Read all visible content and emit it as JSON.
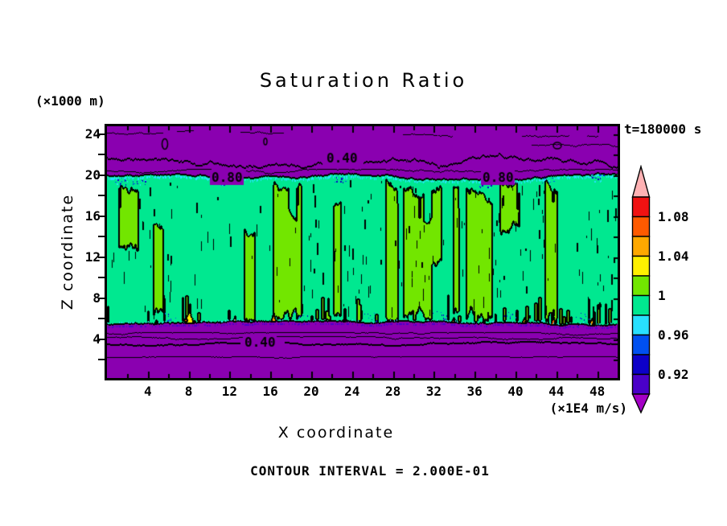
{
  "title": "Saturation Ratio",
  "annotations": {
    "time": "t=180000 s",
    "y_unit": "(×1000 m)",
    "x_unit": "(×1E4 m/s)",
    "contour_interval": "CONTOUR INTERVAL = 2.000E-01"
  },
  "axes": {
    "x": {
      "label": "X coordinate",
      "ticks": [
        4,
        8,
        12,
        16,
        20,
        24,
        28,
        32,
        36,
        40,
        44,
        48
      ],
      "range": [
        0,
        50
      ]
    },
    "y": {
      "label": "Z coordinate",
      "ticks": [
        4,
        8,
        12,
        16,
        20,
        24
      ],
      "range": [
        0,
        25
      ]
    }
  },
  "colorbar": {
    "colors_top_to_bottom": [
      "#F01212",
      "#FF5A00",
      "#FFA800",
      "#FFF000",
      "#72E600",
      "#00E890",
      "#28E0FF",
      "#0050F0",
      "#0D00C8",
      "#4A00C8"
    ],
    "top_arrow_color": "#FFB2B4",
    "bottom_arrow_color": "#A400C6",
    "labels": [
      {
        "text": "1.08",
        "boundary_index": 1
      },
      {
        "text": "1.04",
        "boundary_index": 3
      },
      {
        "text": "1",
        "boundary_index": 5
      },
      {
        "text": "0.96",
        "boundary_index": 7
      },
      {
        "text": "0.92",
        "boundary_index": 9
      }
    ]
  },
  "palette": {
    "purple": "#8A00B0",
    "spring": "#00E890",
    "chartreuse": "#72E600",
    "cyan": "#28E0FF",
    "blue": "#0050F0",
    "navy": "#0D00C8",
    "violet": "#4A00C8",
    "yellow": "#FFF000",
    "orange": "#FFA800",
    "orangered": "#FF5A00",
    "red": "#F01212",
    "black": "#000000"
  },
  "chart_data": {
    "type": "filled_contour",
    "title": "Saturation Ratio",
    "xlabel": "X coordinate",
    "ylabel": "Z coordinate",
    "x_units": "×1E4 m/s",
    "y_units": "×1000 m",
    "time": "t=180000 s",
    "contour_interval": 0.2,
    "x_range": [
      0,
      50
    ],
    "y_range": [
      0,
      25
    ],
    "x_ticks": [
      4,
      8,
      12,
      16,
      20,
      24,
      28,
      32,
      36,
      40,
      44,
      48
    ],
    "y_ticks": [
      4,
      8,
      12,
      16,
      20,
      24
    ],
    "colorbar_levels": {
      "labeled_values": [
        0.92,
        0.96,
        1.0,
        1.04,
        1.08
      ],
      "step_per_block": 0.02,
      "value_range_blocks": [
        0.9,
        1.1
      ]
    },
    "regions": [
      {
        "name": "upper_subsaturated_layer",
        "z_range": [
          19.7,
          25
        ],
        "saturation": "< 0.8 (mostly < 0.4)",
        "fill": "purple",
        "contour_labels": [
          {
            "text": "0.40",
            "x": 22.5,
            "z": 21.4
          },
          {
            "text": "0.80",
            "x": 12.0,
            "z": 19.6
          },
          {
            "text": "0.80",
            "x": 38.3,
            "z": 19.6
          }
        ]
      },
      {
        "name": "cloud_layer",
        "z_range": [
          5.4,
          19.7
        ],
        "saturation": "0.98 – 1.02",
        "fill": "alternating vertical streaks of spring-green (~1.0) and chartreuse (~1.02) with black contour filaments",
        "details": "cyan/blue pockets (~0.96) along top and bottom edges; isolated yellow/orange/red supersaturation spots (1.04–1.10) at cloud base near x≈8"
      },
      {
        "name": "lower_subsaturated_layer",
        "z_range": [
          0,
          5.4
        ],
        "saturation": "< 0.8 (mostly < 0.4)",
        "fill": "purple",
        "contour_labels": [
          {
            "text": "0.40",
            "x": 15.1,
            "z": 3.8
          }
        ]
      }
    ]
  }
}
